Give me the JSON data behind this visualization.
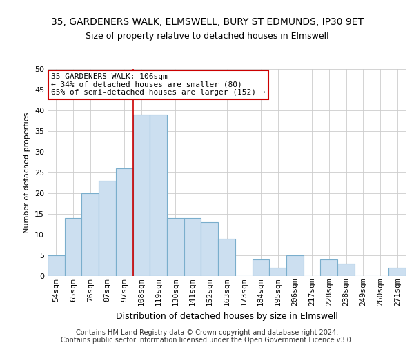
{
  "title_line1": "35, GARDENERS WALK, ELMSWELL, BURY ST EDMUNDS, IP30 9ET",
  "title_line2": "Size of property relative to detached houses in Elmswell",
  "xlabel": "Distribution of detached houses by size in Elmswell",
  "ylabel": "Number of detached properties",
  "bar_labels": [
    "54sqm",
    "65sqm",
    "76sqm",
    "87sqm",
    "97sqm",
    "108sqm",
    "119sqm",
    "130sqm",
    "141sqm",
    "152sqm",
    "163sqm",
    "173sqm",
    "184sqm",
    "195sqm",
    "206sqm",
    "217sqm",
    "228sqm",
    "238sqm",
    "249sqm",
    "260sqm",
    "271sqm"
  ],
  "bar_values": [
    5,
    14,
    20,
    23,
    26,
    39,
    39,
    14,
    14,
    13,
    9,
    0,
    4,
    2,
    5,
    0,
    4,
    3,
    0,
    0,
    2
  ],
  "bar_color": "#ccdff0",
  "bar_edge_color": "#7aaecc",
  "vline_index": 5,
  "annotation_text_line1": "35 GARDENERS WALK: 106sqm",
  "annotation_text_line2": "← 34% of detached houses are smaller (80)",
  "annotation_text_line3": "65% of semi-detached houses are larger (152) →",
  "annotation_box_color": "#ffffff",
  "annotation_box_edge": "#cc0000",
  "vline_color": "#cc0000",
  "ylim": [
    0,
    50
  ],
  "yticks": [
    0,
    5,
    10,
    15,
    20,
    25,
    30,
    35,
    40,
    45,
    50
  ],
  "footer_text": "Contains HM Land Registry data © Crown copyright and database right 2024.\nContains public sector information licensed under the Open Government Licence v3.0.",
  "bg_color": "#ffffff",
  "grid_color": "#cccccc",
  "title1_fontsize": 10,
  "title2_fontsize": 9,
  "ylabel_fontsize": 8,
  "xlabel_fontsize": 9,
  "annot_fontsize": 8,
  "tick_fontsize": 8,
  "footer_fontsize": 7
}
